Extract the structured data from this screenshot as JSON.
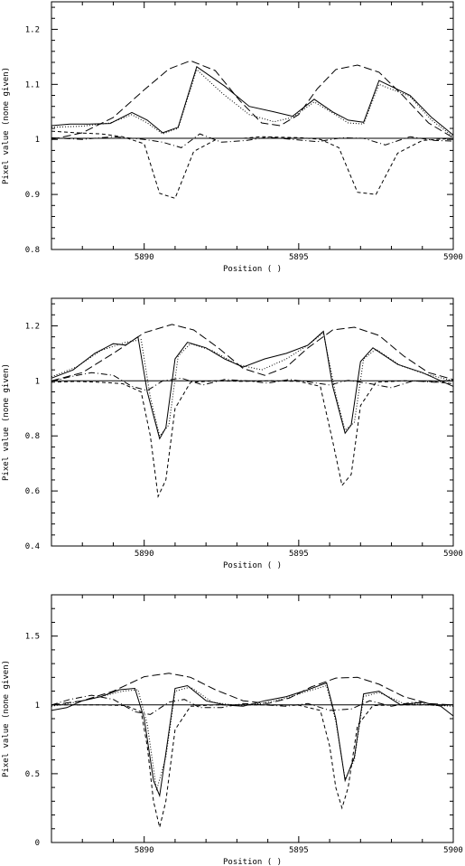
{
  "chart_data": [
    {
      "type": "line",
      "xlabel": "Position ( )",
      "ylabel": "Pixel value (none given)",
      "xlim": [
        5887,
        5900
      ],
      "ylim": [
        0.8,
        1.25
      ],
      "xticks": [
        5890,
        5895,
        5900
      ],
      "yticks": [
        0.8,
        0.9,
        1,
        1.1,
        1.2
      ],
      "ytick_labels": [
        "0.8",
        "0.9",
        "1",
        "1.1",
        "1.2"
      ],
      "grid": false,
      "series": [
        {
          "style": "solid",
          "x": [
            5887.0,
            5887.6,
            5888.2,
            5888.9,
            5889.6,
            5890.1,
            5890.6,
            5891.1,
            5891.7,
            5892.6,
            5893.4,
            5894.2,
            5894.8,
            5895.5,
            5896.1,
            5896.6,
            5897.1,
            5897.6,
            5898.6,
            5899.3,
            5900.0
          ],
          "y": [
            1.025,
            1.028,
            1.028,
            1.029,
            1.049,
            1.035,
            1.012,
            1.022,
            1.132,
            1.097,
            1.06,
            1.05,
            1.042,
            1.073,
            1.05,
            1.035,
            1.031,
            1.107,
            1.08,
            1.04,
            1.008
          ]
        },
        {
          "style": "dotted",
          "x": [
            5887.0,
            5888.0,
            5888.9,
            5889.6,
            5890.1,
            5890.6,
            5891.1,
            5891.7,
            5892.5,
            5893.4,
            5894.2,
            5894.8,
            5895.5,
            5896.1,
            5896.6,
            5897.1,
            5897.6,
            5898.6,
            5899.3,
            5900.0
          ],
          "y": [
            1.022,
            1.024,
            1.03,
            1.045,
            1.03,
            1.01,
            1.02,
            1.127,
            1.085,
            1.045,
            1.032,
            1.04,
            1.068,
            1.048,
            1.03,
            1.028,
            1.1,
            1.078,
            1.035,
            1.005
          ]
        },
        {
          "style": "dashed",
          "x": [
            5887.0,
            5887.8,
            5888.6,
            5889.3,
            5890.0,
            5890.5,
            5891.0,
            5891.6,
            5892.4,
            5893.2,
            5893.8,
            5894.4,
            5895.1,
            5895.7,
            5896.3,
            5896.9,
            5897.5,
            5898.2,
            5899.0,
            5900.0
          ],
          "y": [
            1.015,
            1.012,
            1.01,
            1.005,
            0.992,
            0.902,
            0.893,
            0.978,
            1.002,
            1.002,
            1.005,
            1.004,
            1.003,
            1.0,
            0.985,
            0.904,
            0.9,
            0.975,
            0.998,
            1.002
          ]
        },
        {
          "style": "longdash",
          "x": [
            5887.0,
            5888.0,
            5889.0,
            5890.0,
            5890.8,
            5891.5,
            5892.3,
            5893.1,
            5893.8,
            5894.4,
            5895.0,
            5895.6,
            5896.2,
            5896.9,
            5897.6,
            5898.4,
            5899.2,
            5900.0
          ],
          "y": [
            1.0,
            1.012,
            1.04,
            1.09,
            1.128,
            1.143,
            1.125,
            1.07,
            1.03,
            1.025,
            1.045,
            1.092,
            1.127,
            1.135,
            1.122,
            1.078,
            1.03,
            1.003
          ]
        },
        {
          "style": "dashdot",
          "x": [
            5887.0,
            5888.0,
            5889.0,
            5890.0,
            5890.6,
            5891.2,
            5891.8,
            5892.5,
            5893.3,
            5894.0,
            5894.8,
            5895.6,
            5896.4,
            5897.1,
            5897.8,
            5898.6,
            5899.4,
            5900.0
          ],
          "y": [
            1.003,
            1.0,
            1.005,
            1.0,
            0.995,
            0.985,
            1.01,
            0.995,
            0.998,
            1.004,
            1.0,
            0.996,
            1.003,
            1.002,
            0.99,
            1.005,
            0.998,
            0.997
          ]
        },
        {
          "style": "solid",
          "x": [
            5887.0,
            5900.0
          ],
          "y": [
            1.002,
            1.002
          ]
        }
      ]
    },
    {
      "type": "line",
      "xlabel": "Position ( )",
      "ylabel": "Pixel value (none given)",
      "xlim": [
        5887,
        5900
      ],
      "ylim": [
        0.4,
        1.3
      ],
      "xticks": [
        5890,
        5895,
        5900
      ],
      "yticks": [
        0.4,
        0.6,
        0.8,
        1,
        1.2
      ],
      "ytick_labels": [
        "0.4",
        "0.6",
        "0.8",
        "1",
        "1.2"
      ],
      "grid": false,
      "series": [
        {
          "style": "solid",
          "x": [
            5887.0,
            5887.7,
            5888.4,
            5889.0,
            5889.4,
            5889.8,
            5890.1,
            5890.5,
            5890.7,
            5891.0,
            5891.4,
            5892.0,
            5892.6,
            5893.2,
            5893.9,
            5894.6,
            5895.3,
            5895.8,
            5896.1,
            5896.5,
            5896.7,
            5897.0,
            5897.4,
            5898.2,
            5899.0,
            5900.0
          ],
          "y": [
            1.01,
            1.04,
            1.1,
            1.135,
            1.13,
            1.16,
            0.96,
            0.79,
            0.83,
            1.08,
            1.14,
            1.12,
            1.08,
            1.05,
            1.08,
            1.1,
            1.13,
            1.18,
            0.98,
            0.81,
            0.84,
            1.07,
            1.12,
            1.06,
            1.03,
            0.98
          ]
        },
        {
          "style": "dotted",
          "x": [
            5887.0,
            5887.8,
            5888.6,
            5889.4,
            5889.9,
            5890.2,
            5890.5,
            5890.8,
            5891.1,
            5891.5,
            5892.2,
            5893.0,
            5893.8,
            5894.6,
            5895.3,
            5895.8,
            5896.2,
            5896.5,
            5896.8,
            5897.1,
            5897.5,
            5898.3,
            5899.1,
            5900.0
          ],
          "y": [
            1.015,
            1.05,
            1.11,
            1.14,
            1.15,
            0.94,
            0.8,
            0.84,
            1.09,
            1.135,
            1.11,
            1.06,
            1.04,
            1.08,
            1.13,
            1.175,
            0.95,
            0.82,
            0.85,
            1.08,
            1.115,
            1.055,
            1.025,
            1.0
          ]
        },
        {
          "style": "dashed",
          "x": [
            5887.0,
            5887.8,
            5888.6,
            5889.3,
            5889.9,
            5890.2,
            5890.45,
            5890.7,
            5891.0,
            5891.5,
            5892.3,
            5893.2,
            5894.1,
            5895.0,
            5895.7,
            5896.1,
            5896.4,
            5896.7,
            5897.0,
            5897.5,
            5898.4,
            5899.2,
            5900.0
          ],
          "y": [
            0.995,
            0.998,
            0.995,
            0.99,
            0.96,
            0.8,
            0.58,
            0.64,
            0.9,
            0.995,
            1.0,
            0.998,
            1.0,
            0.998,
            0.98,
            0.78,
            0.62,
            0.66,
            0.91,
            0.995,
            1.0,
            0.998,
            0.99
          ]
        },
        {
          "style": "longdash",
          "x": [
            5887.0,
            5888.0,
            5889.0,
            5890.0,
            5890.9,
            5891.6,
            5892.4,
            5893.2,
            5893.9,
            5894.6,
            5895.3,
            5896.1,
            5896.8,
            5897.6,
            5898.4,
            5899.2,
            5900.0
          ],
          "y": [
            1.0,
            1.03,
            1.1,
            1.175,
            1.205,
            1.185,
            1.12,
            1.045,
            1.02,
            1.05,
            1.12,
            1.185,
            1.195,
            1.165,
            1.09,
            1.03,
            1.005
          ]
        },
        {
          "style": "dashdot",
          "x": [
            5887.0,
            5887.6,
            5888.3,
            5889.0,
            5889.6,
            5890.1,
            5890.6,
            5891.2,
            5891.9,
            5892.6,
            5893.3,
            5894.0,
            5894.7,
            5895.4,
            5896.0,
            5896.6,
            5897.3,
            5898.0,
            5898.7,
            5899.4,
            5900.0
          ],
          "y": [
            0.998,
            1.015,
            1.03,
            1.02,
            0.98,
            0.965,
            1.0,
            1.01,
            0.985,
            1.005,
            1.0,
            0.992,
            1.005,
            0.995,
            0.985,
            1.002,
            0.99,
            0.975,
            1.0,
            0.995,
            1.003
          ]
        },
        {
          "style": "solid",
          "x": [
            5887.0,
            5900.0
          ],
          "y": [
            1.0,
            1.0
          ]
        }
      ]
    },
    {
      "type": "line",
      "xlabel": "Position ( )",
      "ylabel": "Pixel value (none given)",
      "xlim": [
        5887,
        5900
      ],
      "ylim": [
        0,
        1.8
      ],
      "xticks": [
        5890,
        5895,
        5900
      ],
      "yticks": [
        0,
        0.5,
        1,
        1.5
      ],
      "ytick_labels": [
        "0",
        "0.5",
        "1",
        "1.5"
      ],
      "grid": false,
      "series": [
        {
          "style": "solid",
          "x": [
            5887.0,
            5887.5,
            5888.0,
            5888.6,
            5889.2,
            5889.7,
            5890.0,
            5890.3,
            5890.5,
            5890.7,
            5891.0,
            5891.4,
            5892.0,
            5892.6,
            5893.2,
            5893.9,
            5894.6,
            5895.3,
            5895.9,
            5896.2,
            5896.5,
            5896.8,
            5897.1,
            5897.6,
            5898.3,
            5899.0,
            5899.6,
            5900.0
          ],
          "y": [
            0.96,
            0.98,
            1.03,
            1.06,
            1.11,
            1.12,
            0.9,
            0.45,
            0.34,
            0.65,
            1.12,
            1.14,
            1.03,
            1.0,
            0.99,
            1.03,
            1.06,
            1.11,
            1.16,
            0.9,
            0.45,
            0.62,
            1.08,
            1.1,
            1.0,
            1.02,
            0.99,
            0.92
          ]
        },
        {
          "style": "dotted",
          "x": [
            5887.0,
            5887.8,
            5888.6,
            5889.3,
            5889.8,
            5890.1,
            5890.4,
            5890.7,
            5891.0,
            5891.5,
            5892.2,
            5893.0,
            5893.8,
            5894.6,
            5895.3,
            5895.9,
            5896.2,
            5896.5,
            5896.8,
            5897.1,
            5897.6,
            5898.4,
            5899.2,
            5900.0
          ],
          "y": [
            0.99,
            1.02,
            1.06,
            1.1,
            1.11,
            0.86,
            0.38,
            0.62,
            1.1,
            1.13,
            1.02,
            0.995,
            1.01,
            1.05,
            1.1,
            1.14,
            0.88,
            0.46,
            0.6,
            1.06,
            1.09,
            1.01,
            1.0,
            0.99
          ]
        },
        {
          "style": "dashed",
          "x": [
            5887.0,
            5887.8,
            5888.6,
            5889.4,
            5889.9,
            5890.1,
            5890.3,
            5890.5,
            5890.7,
            5891.0,
            5891.5,
            5892.3,
            5893.2,
            5894.1,
            5895.0,
            5895.7,
            5896.0,
            5896.2,
            5896.4,
            5896.6,
            5896.9,
            5897.4,
            5898.3,
            5899.1,
            5900.0
          ],
          "y": [
            1.0,
            1.0,
            1.0,
            0.995,
            0.95,
            0.7,
            0.3,
            0.11,
            0.3,
            0.82,
            0.99,
            1.0,
            1.0,
            1.0,
            0.998,
            0.96,
            0.7,
            0.4,
            0.25,
            0.4,
            0.85,
            0.995,
            1.0,
            1.0,
            1.0
          ]
        },
        {
          "style": "longdash",
          "x": [
            5887.0,
            5888.0,
            5889.0,
            5890.0,
            5890.8,
            5891.5,
            5892.3,
            5893.2,
            5894.0,
            5894.7,
            5895.4,
            5896.2,
            5896.9,
            5897.6,
            5898.4,
            5899.2,
            5900.0
          ],
          "y": [
            1.0,
            1.03,
            1.1,
            1.205,
            1.23,
            1.2,
            1.11,
            1.03,
            1.01,
            1.05,
            1.13,
            1.195,
            1.2,
            1.15,
            1.06,
            1.01,
            1.0
          ]
        },
        {
          "style": "dashdot",
          "x": [
            5887.0,
            5887.6,
            5888.3,
            5889.0,
            5889.7,
            5890.2,
            5890.8,
            5891.3,
            5891.8,
            5892.5,
            5893.2,
            5893.9,
            5894.6,
            5895.3,
            5896.0,
            5896.7,
            5897.3,
            5898.0,
            5898.7,
            5899.4,
            5900.0
          ],
          "y": [
            1.0,
            1.04,
            1.07,
            1.04,
            0.95,
            0.93,
            1.02,
            1.04,
            0.98,
            0.98,
            1.01,
            1.0,
            0.99,
            1.01,
            0.96,
            0.97,
            1.03,
            0.99,
            1.02,
            0.995,
            1.0
          ]
        },
        {
          "style": "solid",
          "x": [
            5887.0,
            5900.0
          ],
          "y": [
            1.0,
            1.0
          ]
        }
      ]
    }
  ]
}
